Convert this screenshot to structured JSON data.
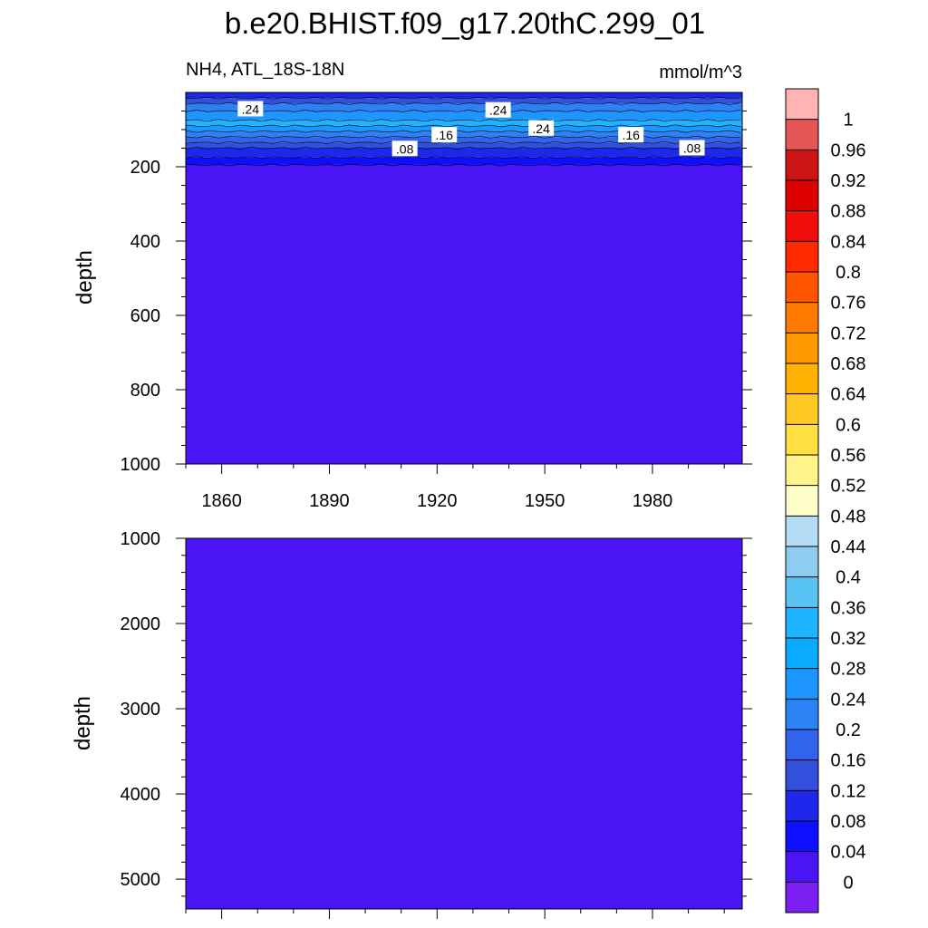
{
  "title": "b.e20.BHIST.f09_g17.20thC.299_01",
  "chart_data": [
    {
      "type": "heatmap",
      "panel": "upper",
      "left_label": "NH4, ATL_18S-18N",
      "right_label": "mmol/m^3",
      "xlabel": "",
      "ylabel": "depth",
      "xlim": [
        1850,
        2005
      ],
      "ylim": [
        1000,
        0
      ],
      "xticks": [
        1860,
        1890,
        1920,
        1950,
        1980
      ],
      "yticks": [
        200,
        400,
        600,
        800,
        1000
      ],
      "contour_labels": [
        {
          "text": ".24",
          "year": 1868,
          "depth": 45
        },
        {
          "text": ".24",
          "year": 1937,
          "depth": 48
        },
        {
          "text": ".24",
          "year": 1949,
          "depth": 97
        },
        {
          "text": ".16",
          "year": 1922,
          "depth": 115
        },
        {
          "text": ".16",
          "year": 1974,
          "depth": 115
        },
        {
          "text": ".08",
          "year": 1911,
          "depth": 152
        },
        {
          "text": ".08",
          "year": 1991,
          "depth": 150
        }
      ],
      "depth_profile": [
        {
          "depth": 0,
          "value": 0.1
        },
        {
          "depth": 15,
          "value": 0.14
        },
        {
          "depth": 30,
          "value": 0.2
        },
        {
          "depth": 50,
          "value": 0.26
        },
        {
          "depth": 75,
          "value": 0.34
        },
        {
          "depth": 90,
          "value": 0.26
        },
        {
          "depth": 105,
          "value": 0.22
        },
        {
          "depth": 120,
          "value": 0.18
        },
        {
          "depth": 135,
          "value": 0.14
        },
        {
          "depth": 150,
          "value": 0.1
        },
        {
          "depth": 175,
          "value": 0.06
        },
        {
          "depth": 195,
          "value": 0.02
        },
        {
          "depth": 1000,
          "value": 0.02
        }
      ]
    },
    {
      "type": "heatmap",
      "panel": "lower",
      "xlabel": "",
      "ylabel": "depth",
      "xlim": [
        1850,
        2005
      ],
      "ylim": [
        5350,
        1000
      ],
      "yticks": [
        1000,
        2000,
        3000,
        4000,
        5000
      ],
      "uniform_value": 0.02
    }
  ],
  "colorbar": {
    "labels": [
      "1",
      "0.96",
      "0.92",
      "0.88",
      "0.84",
      "0.8",
      "0.76",
      "0.72",
      "0.68",
      "0.64",
      "0.6",
      "0.56",
      "0.52",
      "0.48",
      "0.44",
      "0.4",
      "0.36",
      "0.32",
      "0.28",
      "0.24",
      "0.2",
      "0.16",
      "0.12",
      "0.08",
      "0.04",
      "0"
    ],
    "colors": [
      "#ffb3b3",
      "#e55656",
      "#cc1414",
      "#dd0000",
      "#f20d0d",
      "#ff2a00",
      "#ff5500",
      "#ff7a00",
      "#ff9900",
      "#ffb200",
      "#ffc822",
      "#ffe040",
      "#fff38a",
      "#ffffcc",
      "#b4dcf5",
      "#8ccdf0",
      "#5ac3f5",
      "#1eb4ff",
      "#0aaaff",
      "#1e96ff",
      "#2a82f5",
      "#3264eb",
      "#3250dc",
      "#1e28eb",
      "#0f0fff",
      "#4b14f5",
      "#7d1ef0"
    ]
  }
}
